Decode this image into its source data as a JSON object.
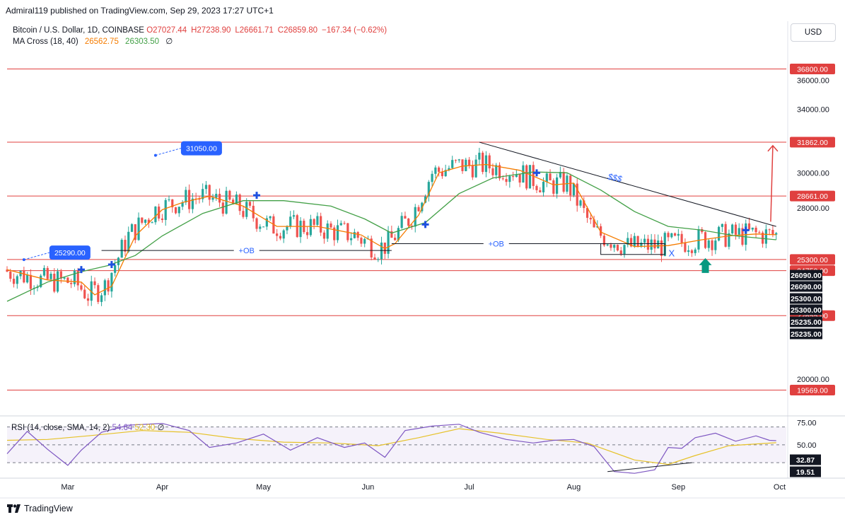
{
  "header": {
    "publisher": "Admiral119 published on TradingView.com, Sep 29, 2023 17:27 UTC+1"
  },
  "legend": {
    "symbol": "Bitcoin / U.S. Dollar, 1D, COINBASE",
    "open": "O27027.44",
    "high": "H27238.90",
    "low": "L26661.71",
    "close": "C26859.80",
    "change": "−167.34 (−0.62%)",
    "ma_label": "MA Cross (18, 40)",
    "ma_fast": "26562.75",
    "ma_slow": "26303.50",
    "ma_extra": "∅"
  },
  "currency_button": "USD",
  "rsi_legend": {
    "label": "RSI (14, close, SMA, 14, 2)",
    "rsi": "54.64",
    "sma": "52.30",
    "extra": "∅"
  },
  "footer": {
    "brand": "TradingView"
  },
  "colors": {
    "up": "#26a69a",
    "down": "#ef5350",
    "level": "#e0403f",
    "ma_fast": "#f57c00",
    "ma_slow": "#43a047",
    "rsi": "#7e57c2",
    "rsi_sma": "#e6c229"
  },
  "chart_data": [
    {
      "type": "candlestick",
      "y_axis": {
        "scale": "log",
        "ticks": [
          "36000.00",
          "34000.00",
          "30000.00",
          "28000.00",
          "20000.00"
        ],
        "ticks_values": [
          36000,
          34000,
          30000,
          28000,
          20000
        ],
        "range": [
          18600,
          38500
        ]
      },
      "x_axis": {
        "ticks": [
          "Mar",
          "Apr",
          "May",
          "Jun",
          "Jul",
          "Aug",
          "Sep",
          "Oct"
        ],
        "ticks_days": [
          18,
          46,
          76,
          107,
          137,
          168,
          199,
          229
        ],
        "range_days": [
          0,
          231
        ]
      },
      "horizontal_levels": [
        {
          "label": "36800.00",
          "value": 36800
        },
        {
          "label": "31862.00",
          "value": 31862
        },
        {
          "label": "28661.00",
          "value": 28661
        },
        {
          "label": "25300.00",
          "value": 25300
        },
        {
          "label": "24750.00",
          "value": 24750
        },
        {
          "label": "22655.00",
          "value": 22655
        },
        {
          "label": "19569.00",
          "value": 19569
        }
      ],
      "axis_badges": [
        {
          "label": "26090.00",
          "value": 26090
        },
        {
          "label": "26090.00",
          "value": 26090
        },
        {
          "label": "25300.00",
          "value": 25300
        },
        {
          "label": "25300.00",
          "value": 25300
        },
        {
          "label": "25235.00",
          "value": 25235
        },
        {
          "label": "25235.00",
          "value": 25235
        }
      ],
      "order_blocks": [
        {
          "label": "+OB",
          "value": 25750,
          "start_day": 28,
          "end_day": 114
        },
        {
          "label": "+OB",
          "value": 26100,
          "start_day": 114,
          "end_day": 176
        }
      ],
      "ob_box": {
        "top": 26100,
        "bottom": 25550,
        "start_day": 176,
        "end_day": 195
      },
      "trendline": {
        "from": [
          140,
          31862
        ],
        "to": [
          228,
          27000
        ]
      },
      "callouts": [
        {
          "label": "31050.00",
          "day": 44,
          "value": 31050
        },
        {
          "label": "25290.00",
          "day": 5,
          "value": 25290
        }
      ],
      "annotations": [
        {
          "text": "$$$",
          "day": 180,
          "value": 29550
        },
        {
          "text": "X",
          "day": 197,
          "value": 25450
        }
      ],
      "cross_markers": [
        {
          "day": 22,
          "value": 24800
        },
        {
          "day": 31,
          "value": 25050
        },
        {
          "day": 74,
          "value": 28700
        },
        {
          "day": 124,
          "value": 27100
        },
        {
          "day": 157,
          "value": 30000
        },
        {
          "day": 219,
          "value": 26800
        }
      ],
      "arrow_up_signal": {
        "day": 207,
        "value": 24950
      },
      "target_arrow": {
        "day": 227,
        "from": 27250,
        "to": 31650
      },
      "series": [
        {
          "name": "MA fast",
          "points": [
            [
              0,
              24800
            ],
            [
              12,
              24300
            ],
            [
              22,
              24200
            ],
            [
              26,
              23600
            ],
            [
              31,
              24000
            ],
            [
              38,
              26500
            ],
            [
              46,
              27900
            ],
            [
              52,
              28300
            ],
            [
              60,
              28650
            ],
            [
              70,
              28100
            ],
            [
              80,
              27000
            ],
            [
              92,
              27000
            ],
            [
              105,
              26550
            ],
            [
              112,
              25850
            ],
            [
              115,
              26100
            ],
            [
              122,
              27600
            ],
            [
              128,
              30000
            ],
            [
              135,
              30400
            ],
            [
              142,
              30500
            ],
            [
              152,
              30150
            ],
            [
              162,
              29300
            ],
            [
              168,
              29400
            ],
            [
              176,
              26700
            ],
            [
              186,
              25950
            ],
            [
              196,
              26000
            ],
            [
              206,
              26300
            ],
            [
              214,
              26500
            ],
            [
              222,
              26600
            ],
            [
              228,
              26560
            ]
          ]
        },
        {
          "name": "MA slow",
          "points": [
            [
              0,
              23300
            ],
            [
              12,
              24200
            ],
            [
              22,
              24700
            ],
            [
              30,
              25000
            ],
            [
              38,
              25500
            ],
            [
              46,
              26500
            ],
            [
              58,
              27700
            ],
            [
              70,
              28400
            ],
            [
              82,
              28400
            ],
            [
              96,
              28100
            ],
            [
              106,
              27400
            ],
            [
              114,
              26650
            ],
            [
              124,
              27200
            ],
            [
              134,
              28800
            ],
            [
              144,
              29700
            ],
            [
              156,
              30050
            ],
            [
              166,
              30000
            ],
            [
              176,
              29000
            ],
            [
              186,
              27800
            ],
            [
              196,
              27000
            ],
            [
              206,
              26800
            ],
            [
              216,
              26500
            ],
            [
              228,
              26300
            ]
          ]
        }
      ]
    },
    {
      "type": "line",
      "title": "RSI (14, close, SMA, 14, 2)",
      "y_axis": {
        "ticks": [
          "75.00",
          "50.00"
        ],
        "ticks_values": [
          75,
          50
        ],
        "range": [
          15,
          80
        ]
      },
      "levels": [
        70,
        50,
        30
      ],
      "badges": [
        {
          "label": "32.87",
          "value": 32.87
        },
        {
          "label": "19.51",
          "value": 19.51
        }
      ],
      "divergence_line": {
        "from": [
          178,
          20
        ],
        "to": [
          203,
          30
        ]
      },
      "series": [
        {
          "name": "RSI",
          "points": [
            [
              0,
              40
            ],
            [
              6,
              65
            ],
            [
              12,
              45
            ],
            [
              18,
              27
            ],
            [
              22,
              44
            ],
            [
              28,
              64
            ],
            [
              36,
              72
            ],
            [
              46,
              74
            ],
            [
              54,
              66
            ],
            [
              60,
              47
            ],
            [
              68,
              52
            ],
            [
              76,
              62
            ],
            [
              84,
              44
            ],
            [
              92,
              58
            ],
            [
              100,
              47
            ],
            [
              106,
              52
            ],
            [
              112,
              36
            ],
            [
              118,
              66
            ],
            [
              126,
              71
            ],
            [
              134,
              73
            ],
            [
              140,
              64
            ],
            [
              148,
              56
            ],
            [
              156,
              52
            ],
            [
              162,
              55
            ],
            [
              168,
              56
            ],
            [
              174,
              48
            ],
            [
              180,
              20
            ],
            [
              186,
              18
            ],
            [
              192,
              22
            ],
            [
              196,
              47
            ],
            [
              200,
              46
            ],
            [
              204,
              58
            ],
            [
              210,
              63
            ],
            [
              216,
              54
            ],
            [
              222,
              60
            ],
            [
              226,
              55
            ],
            [
              228,
              54.64
            ]
          ]
        },
        {
          "name": "SMA",
          "points": [
            [
              0,
              55
            ],
            [
              12,
              56
            ],
            [
              24,
              60
            ],
            [
              40,
              66
            ],
            [
              54,
              64
            ],
            [
              68,
              57
            ],
            [
              82,
              53
            ],
            [
              96,
              52
            ],
            [
              110,
              49
            ],
            [
              122,
              58
            ],
            [
              134,
              68
            ],
            [
              146,
              63
            ],
            [
              160,
              56
            ],
            [
              172,
              52
            ],
            [
              186,
              33
            ],
            [
              196,
              28
            ],
            [
              204,
              38
            ],
            [
              214,
              49
            ],
            [
              228,
              52.3
            ]
          ]
        }
      ]
    }
  ]
}
